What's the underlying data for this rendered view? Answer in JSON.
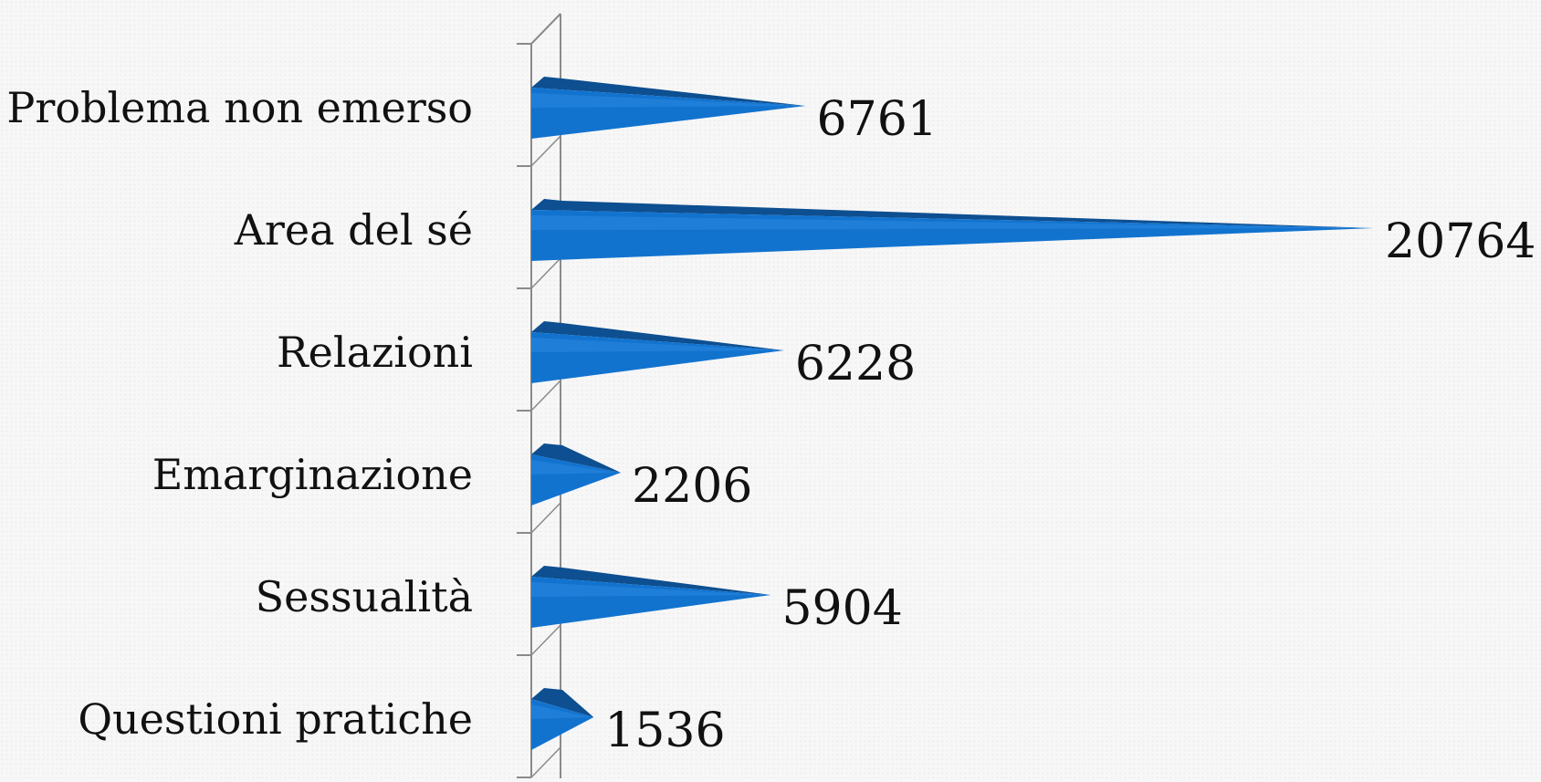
{
  "chart_data": {
    "type": "bar",
    "orientation": "horizontal",
    "bar_shape": "cone",
    "categories": [
      "Problema non emerso",
      "Area del sé",
      "Relazioni",
      "Emarginazione",
      "Sessualità",
      "Questioni pratiche"
    ],
    "values": [
      6761,
      20764,
      6228,
      2206,
      5904,
      1536
    ],
    "data_labels": [
      "6761",
      "20764",
      "6228",
      "2206",
      "5904",
      "1536"
    ],
    "title": "",
    "xlabel": "",
    "ylabel": "",
    "xlim": [
      0,
      20764
    ],
    "grid": false,
    "legend": "none",
    "colors": {
      "bar_front": "#1273cf",
      "bar_top": "#0d4f91",
      "bar_highlight": "#3a92e4",
      "axis": "#8a8a8a"
    }
  }
}
